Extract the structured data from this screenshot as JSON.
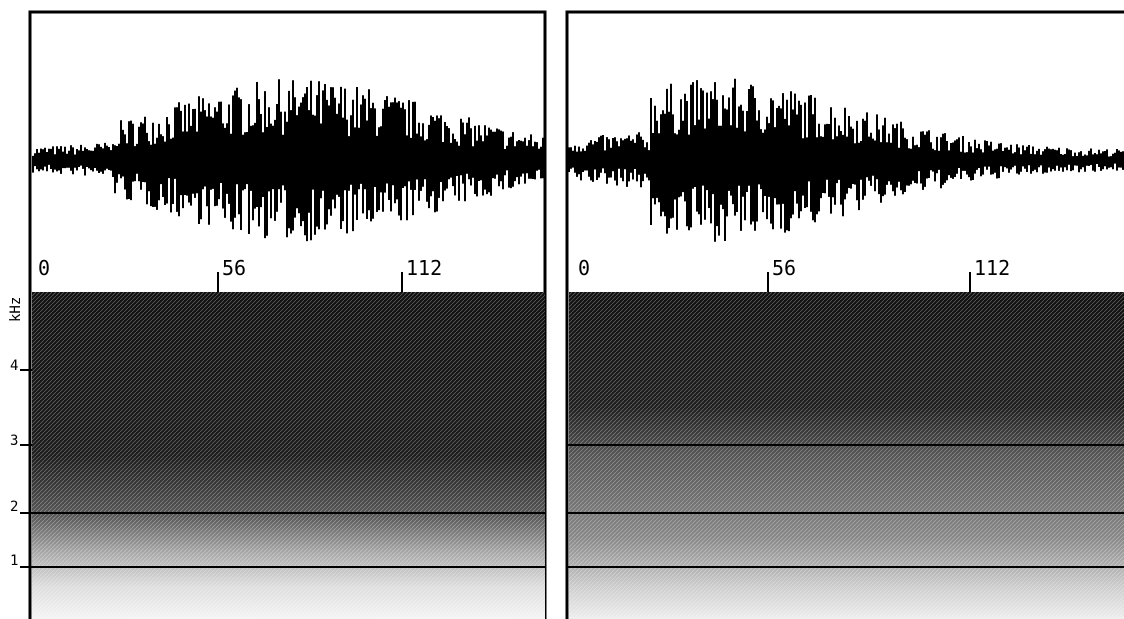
{
  "panels": [
    {
      "time_labels": [
        "0",
        "56",
        "112"
      ]
    },
    {
      "time_labels": [
        "0",
        "56",
        "112"
      ]
    }
  ],
  "frequency_axis": {
    "unit": "kHz",
    "labels": [
      "4",
      "3",
      "2",
      "1"
    ]
  }
}
